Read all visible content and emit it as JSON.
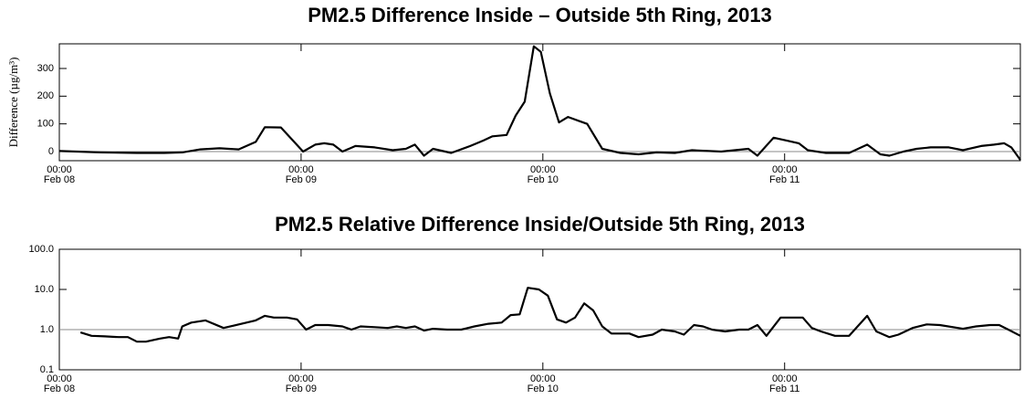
{
  "chart_data": [
    {
      "type": "line",
      "title": "PM2.5 Difference Inside – Outside 5th Ring, 2013",
      "y_label": "Difference (µg/m³)",
      "color": "#000000",
      "log_y": false,
      "refline": 0,
      "x": [
        0,
        4.1,
        7.7,
        10.4,
        12.2,
        14,
        15.9,
        17.8,
        19.5,
        20.4,
        22,
        24.2,
        25.4,
        26.3,
        27.2,
        28.1,
        29.4,
        31.3,
        33.1,
        34.4,
        35.3,
        36.2,
        37.1,
        38.9,
        40.8,
        42.1,
        43,
        44.4,
        45.3,
        46.2,
        47.1,
        47.8,
        48.7,
        49.6,
        50.5,
        52.4,
        53.9,
        55.7,
        57.5,
        59.3,
        61.1,
        62.8,
        65.7,
        68.4,
        69.3,
        70.9,
        72.2,
        73.4,
        74.3,
        76.1,
        78.4,
        80.2,
        81.5,
        82.4,
        83.8,
        85.1,
        86.5,
        88.3,
        89.7,
        91.5,
        92.8,
        93.8,
        94.5,
        95.4
      ],
      "values": [
        2,
        -3,
        -5,
        -5,
        -3,
        8,
        12,
        8,
        35,
        88,
        87,
        0,
        25,
        30,
        25,
        0,
        20,
        15,
        5,
        10,
        25,
        -15,
        10,
        -5,
        20,
        40,
        55,
        60,
        130,
        180,
        380,
        360,
        210,
        105,
        125,
        100,
        10,
        -5,
        -10,
        -3,
        -5,
        5,
        0,
        10,
        -15,
        50,
        40,
        30,
        5,
        -5,
        -5,
        25,
        -10,
        -15,
        0,
        10,
        15,
        15,
        5,
        20,
        25,
        30,
        15,
        -30
      ],
      "xlim": [
        0,
        95.4
      ],
      "xticks": [
        {
          "value": 0,
          "label": "00:00",
          "date": "Feb 08"
        },
        {
          "value": 24,
          "label": "00:00",
          "date": "Feb 09"
        },
        {
          "value": 48,
          "label": "00:00",
          "date": "Feb 10"
        },
        {
          "value": 72,
          "label": "00:00",
          "date": "Feb 11"
        }
      ],
      "ylim": [
        -33,
        389
      ],
      "yticks": [
        0,
        100,
        200,
        300
      ]
    },
    {
      "type": "line",
      "title": "PM2.5 Relative Difference Inside/Outside 5th Ring, 2013",
      "color": "#000000",
      "log_y": true,
      "refline": 1,
      "x": [
        2.1,
        3.2,
        4.5,
        5.9,
        6.8,
        7.7,
        8.6,
        10,
        10.9,
        11.8,
        12.2,
        13.1,
        14.5,
        16.3,
        18.1,
        19.5,
        20.4,
        21.3,
        22.6,
        23.6,
        24.5,
        25.4,
        26.7,
        28.1,
        29,
        29.9,
        31.3,
        32.6,
        33.5,
        34.4,
        35.3,
        36.2,
        37.1,
        38.5,
        39.9,
        41.2,
        42.6,
        43.9,
        44.8,
        45.7,
        46.5,
        47.6,
        48.5,
        49.4,
        50.3,
        51.2,
        52.1,
        53,
        53.9,
        54.8,
        56.6,
        57.5,
        58.9,
        59.8,
        61.1,
        62,
        63,
        63.9,
        64.8,
        66.1,
        67.5,
        68.4,
        69.3,
        70.2,
        71.6,
        72.9,
        73.8,
        74.7,
        75.6,
        77,
        78.4,
        80.2,
        81.1,
        82.4,
        83.3,
        84.7,
        86.1,
        87.4,
        89.7,
        91,
        92.4,
        93.3,
        94.2,
        95.4
      ],
      "values": [
        0.85,
        0.7,
        0.68,
        0.65,
        0.65,
        0.5,
        0.5,
        0.6,
        0.65,
        0.6,
        1.2,
        1.5,
        1.7,
        1.1,
        1.4,
        1.7,
        2.2,
        2.0,
        2.0,
        1.8,
        1.0,
        1.3,
        1.3,
        1.2,
        1.0,
        1.2,
        1.15,
        1.1,
        1.2,
        1.1,
        1.2,
        0.95,
        1.05,
        1.0,
        1.0,
        1.2,
        1.4,
        1.5,
        2.3,
        2.4,
        11,
        10,
        7,
        1.8,
        1.5,
        2.0,
        4.5,
        3.0,
        1.2,
        0.8,
        0.8,
        0.65,
        0.75,
        1.0,
        0.9,
        0.75,
        1.3,
        1.2,
        1.0,
        0.9,
        1.0,
        1.0,
        1.3,
        0.7,
        2.0,
        2.0,
        2.0,
        1.1,
        0.9,
        0.7,
        0.7,
        2.2,
        0.9,
        0.65,
        0.75,
        1.1,
        1.35,
        1.3,
        1.05,
        1.2,
        1.3,
        1.3,
        1.0,
        0.7
      ],
      "xlim": [
        0,
        95.4
      ],
      "xticks": [
        {
          "value": 0,
          "label": "00:00",
          "date": "Feb 08"
        },
        {
          "value": 24,
          "label": "00:00",
          "date": "Feb 09"
        },
        {
          "value": 48,
          "label": "00:00",
          "date": "Feb 10"
        },
        {
          "value": 72,
          "label": "00:00",
          "date": "Feb 11"
        }
      ],
      "ylim": [
        0.1,
        100
      ],
      "yticks": [
        {
          "value": 0.1,
          "label": "0.1"
        },
        {
          "value": 1,
          "label": "1.0"
        },
        {
          "value": 10,
          "label": "10.0"
        },
        {
          "value": 100,
          "label": "100.0"
        }
      ]
    }
  ]
}
